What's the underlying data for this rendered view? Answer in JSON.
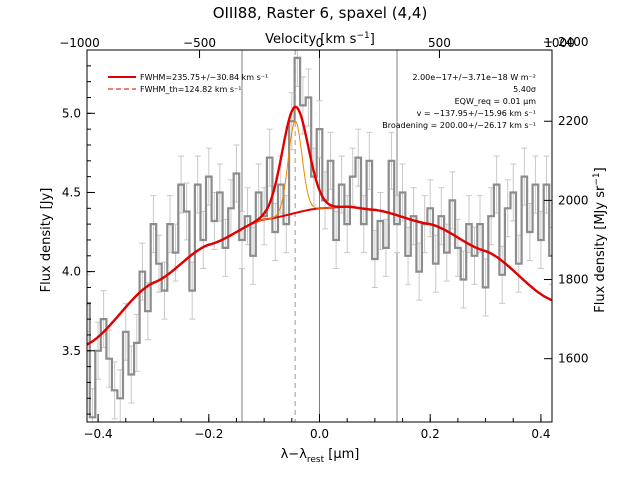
{
  "chart_data": {
    "type": "line",
    "title": "OIII88, Raster 6, spaxel (4,4)",
    "xlabel": "λ−λ_rest [μm]",
    "xlabel_parts": {
      "main": "λ−λ",
      "sub": "rest",
      "unit": " [μm]"
    },
    "ylabel": "Flux density [Jy]",
    "top_xlabel": "Velocity [km s⁻¹]",
    "top_xlabel_parts": {
      "main": "Velocity [km s",
      "sup": "−1",
      "end": "]"
    },
    "right_ylabel": "Flux density [MJy sr⁻¹]",
    "right_ylabel_parts": {
      "main": "Flux density [MJy sr",
      "sup": "−1",
      "end": "]"
    },
    "xlim": [
      -0.42,
      0.42
    ],
    "ylim": [
      3.05,
      5.4
    ],
    "x_ticks": [
      -0.4,
      -0.2,
      0.0,
      0.2,
      0.4
    ],
    "x_tick_labels": [
      "−0.4",
      "−0.2",
      "0.0",
      "0.2",
      "0.4"
    ],
    "y_ticks": [
      3.5,
      4.0,
      4.5,
      5.0
    ],
    "y_tick_labels": [
      "3.5",
      "4.0",
      "4.5",
      "5.0"
    ],
    "top_ticks_um": [
      -0.4335,
      -0.2167,
      0.0,
      0.2167,
      0.4335
    ],
    "top_tick_labels": [
      "−1000",
      "−500",
      "0",
      "500",
      "1000"
    ],
    "right_ticks_jy": [
      3.45,
      3.95,
      4.45,
      4.95
    ],
    "right_tick_labels": [
      "1600",
      "1800",
      "2000",
      "2200",
      "2400"
    ],
    "right_tick_values_jy": [
      3.45,
      3.95,
      4.45,
      4.95,
      5.45
    ],
    "vlines_um": [
      -0.14,
      0.0,
      0.14
    ],
    "line_center_um": -0.044,
    "legend": {
      "position": "top-left",
      "fwhm": "FWHM=235.75+/−30.84 km s⁻¹",
      "fwhm_th": "FWHM_th=124.82 km s⁻¹"
    },
    "annotations": [
      "2.00e−17+/−3.71e−18 W m⁻²",
      "5.40σ",
      "EQW_req = 0.01 μm",
      "v = −137.95+/−15.96 km s⁻¹",
      "Broadening = 200.00+/−26.17 km s⁻¹"
    ],
    "model": {
      "continuum_x": [
        -0.42,
        -0.3,
        -0.2,
        -0.1,
        0.0,
        0.05,
        0.1,
        0.2,
        0.3,
        0.42
      ],
      "continuum_y": [
        3.54,
        3.93,
        4.17,
        4.33,
        4.4,
        4.41,
        4.39,
        4.3,
        4.13,
        3.82
      ],
      "line_peak_jy": 0.67,
      "line_sigma_um": 0.0234,
      "line_th_peak_jy": 0.58,
      "line_th_sigma_um": 0.0124
    },
    "series": [
      {
        "name": "spectrum",
        "x": [
          -0.42,
          -0.41,
          -0.4,
          -0.39,
          -0.38,
          -0.37,
          -0.36,
          -0.35,
          -0.34,
          -0.33,
          -0.32,
          -0.31,
          -0.3,
          -0.29,
          -0.28,
          -0.27,
          -0.26,
          -0.25,
          -0.24,
          -0.23,
          -0.22,
          -0.21,
          -0.2,
          -0.19,
          -0.18,
          -0.17,
          -0.16,
          -0.15,
          -0.14,
          -0.13,
          -0.12,
          -0.11,
          -0.1,
          -0.09,
          -0.08,
          -0.07,
          -0.06,
          -0.05,
          -0.04,
          -0.03,
          -0.02,
          -0.01,
          0.0,
          0.01,
          0.02,
          0.03,
          0.04,
          0.05,
          0.06,
          0.07,
          0.08,
          0.09,
          0.1,
          0.11,
          0.12,
          0.13,
          0.14,
          0.15,
          0.16,
          0.17,
          0.18,
          0.19,
          0.2,
          0.21,
          0.22,
          0.23,
          0.24,
          0.25,
          0.26,
          0.27,
          0.28,
          0.29,
          0.3,
          0.31,
          0.32,
          0.33,
          0.34,
          0.35,
          0.36,
          0.37,
          0.38,
          0.39,
          0.4,
          0.41,
          0.42
        ],
        "y": [
          3.8,
          3.08,
          3.5,
          3.7,
          3.45,
          3.25,
          3.2,
          3.62,
          3.35,
          3.55,
          4.0,
          3.75,
          4.3,
          4.05,
          3.88,
          4.3,
          4.12,
          4.55,
          4.38,
          3.88,
          4.55,
          4.2,
          4.6,
          4.32,
          4.5,
          4.15,
          4.4,
          4.62,
          4.2,
          4.35,
          4.1,
          4.5,
          4.35,
          4.72,
          4.25,
          4.55,
          4.3,
          4.95,
          5.35,
          5.05,
          5.1,
          4.6,
          4.9,
          4.45,
          4.7,
          4.2,
          4.55,
          4.3,
          4.6,
          4.72,
          4.3,
          4.7,
          4.08,
          4.32,
          4.15,
          4.7,
          4.3,
          4.5,
          4.1,
          4.35,
          4.0,
          4.3,
          4.4,
          4.05,
          4.35,
          4.12,
          4.45,
          4.15,
          3.95,
          4.3,
          4.1,
          4.3,
          3.9,
          4.35,
          4.55,
          3.98,
          4.4,
          4.5,
          4.05,
          4.6,
          4.25,
          4.55,
          4.2,
          4.55,
          4.1
        ],
        "err": 0.18
      }
    ]
  }
}
